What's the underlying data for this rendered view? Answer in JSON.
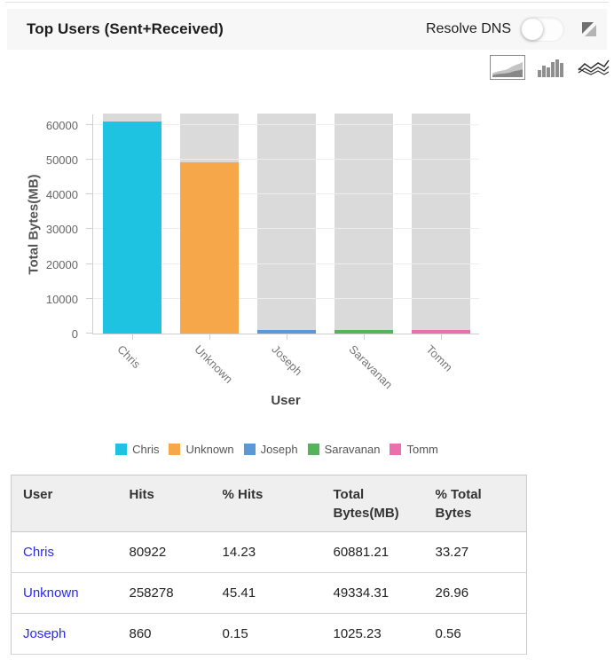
{
  "header": {
    "title": "Top Users (Sent+Received)",
    "resolve_dns_label": "Resolve DNS",
    "resolve_dns_state": "off"
  },
  "toolbar": {
    "icons": [
      "area-chart-icon",
      "bar-chart-icon",
      "line-chart-icon"
    ],
    "selected": "area-chart-icon"
  },
  "chart_data": {
    "type": "bar",
    "title": "",
    "xlabel": "User",
    "ylabel": "Total Bytes(MB)",
    "categories": [
      "Chris",
      "Unknown",
      "Joseph",
      "Saravanan",
      "Tomm"
    ],
    "values": [
      60881.21,
      49334.31,
      1025.23,
      1000,
      950
    ],
    "colors": [
      "#1EC3E2",
      "#F5A74A",
      "#5E97D6",
      "#57B25C",
      "#EC6FAD"
    ],
    "track_color": "#dadada",
    "track_max": 63300,
    "y_ticks": [
      0,
      10000,
      20000,
      30000,
      40000,
      50000,
      60000
    ],
    "ylim": [
      0,
      63300
    ],
    "grid": true,
    "legend_position": "bottom"
  },
  "table": {
    "columns": [
      "User",
      "Hits",
      "% Hits",
      "Total Bytes(MB)",
      "% Total Bytes"
    ],
    "rows": [
      {
        "user": "Chris",
        "hits": "80922",
        "pct_hits": "14.23",
        "total_bytes": "60881.21",
        "pct_total_bytes": "33.27"
      },
      {
        "user": "Unknown",
        "hits": "258278",
        "pct_hits": "45.41",
        "total_bytes": "49334.31",
        "pct_total_bytes": "26.96"
      },
      {
        "user": "Joseph",
        "hits": "860",
        "pct_hits": "0.15",
        "total_bytes": "1025.23",
        "pct_total_bytes": "0.56"
      }
    ]
  }
}
